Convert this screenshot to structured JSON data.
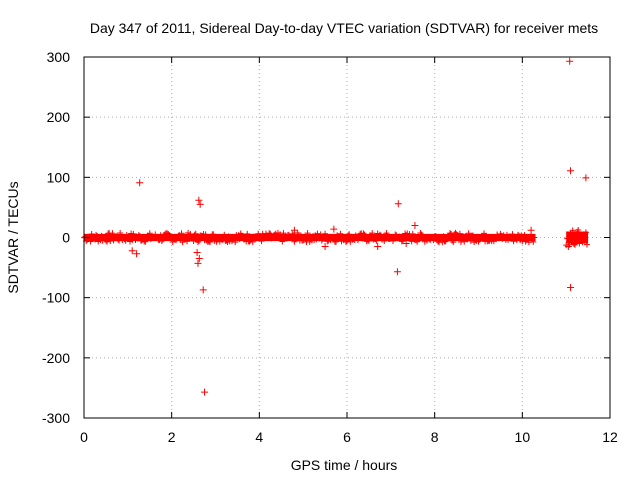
{
  "chart_data": {
    "type": "scatter",
    "title": "Day 347 of 2011, Sidereal Day-to-day VTEC variation (SDTVAR) for receiver mets",
    "xlabel": "GPS time / hours",
    "ylabel": "SDTVAR / TECUs",
    "xlim": [
      0,
      12
    ],
    "ylim": [
      -300,
      300
    ],
    "x_ticks": [
      0,
      2,
      4,
      6,
      8,
      10,
      12
    ],
    "y_ticks": [
      -300,
      -200,
      -100,
      0,
      100,
      200,
      300
    ],
    "grid": true,
    "marker": "plus",
    "series_color": "#ff0000",
    "band_segments": [
      {
        "x_start": 0.0,
        "x_end": 10.3,
        "y_low": -6,
        "y_high": 6
      },
      {
        "x_start": 11.0,
        "x_end": 11.5,
        "y_low": -10,
        "y_high": 10
      }
    ],
    "outliers": [
      {
        "x": 1.27,
        "y": 91
      },
      {
        "x": 1.1,
        "y": -22
      },
      {
        "x": 1.2,
        "y": -27
      },
      {
        "x": 2.62,
        "y": 62
      },
      {
        "x": 2.65,
        "y": 55
      },
      {
        "x": 2.58,
        "y": -25
      },
      {
        "x": 2.63,
        "y": -35
      },
      {
        "x": 2.6,
        "y": -43
      },
      {
        "x": 2.72,
        "y": -87
      },
      {
        "x": 2.75,
        "y": -257
      },
      {
        "x": 4.8,
        "y": 12
      },
      {
        "x": 5.5,
        "y": -15
      },
      {
        "x": 5.7,
        "y": 14
      },
      {
        "x": 6.7,
        "y": -15
      },
      {
        "x": 7.17,
        "y": 56
      },
      {
        "x": 7.15,
        "y": -57
      },
      {
        "x": 7.55,
        "y": 20
      },
      {
        "x": 7.35,
        "y": -10
      },
      {
        "x": 10.2,
        "y": 12
      },
      {
        "x": 11.08,
        "y": 293
      },
      {
        "x": 11.1,
        "y": 111
      },
      {
        "x": 11.45,
        "y": 99
      },
      {
        "x": 11.1,
        "y": -83
      },
      {
        "x": 11.05,
        "y": -15
      }
    ]
  }
}
